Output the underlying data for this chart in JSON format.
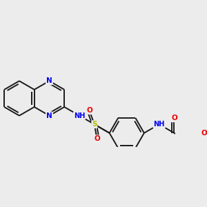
{
  "bg_color": "#ececec",
  "bond_color": "#1a1a1a",
  "bond_width": 1.4,
  "figsize": [
    3.0,
    3.0
  ],
  "dpi": 100,
  "atom_colors": {
    "N": "#0000ee",
    "O": "#ee0000",
    "S": "#bbbb00",
    "C": "#1a1a1a"
  },
  "font_size": 7.5,
  "xlim": [
    -0.5,
    9.5
  ],
  "ylim": [
    -1.8,
    3.2
  ]
}
